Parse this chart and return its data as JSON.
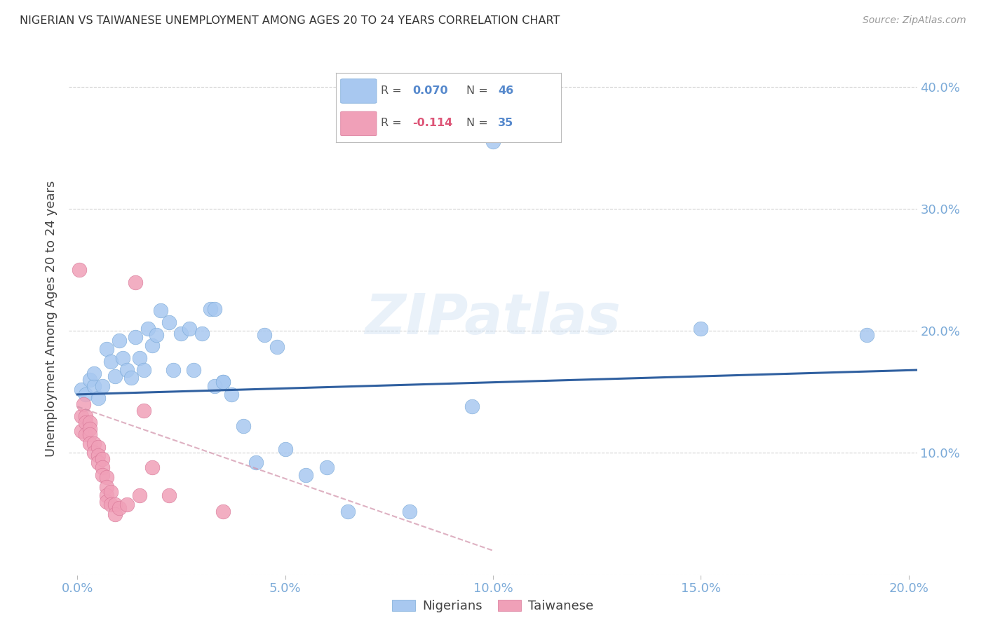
{
  "title": "NIGERIAN VS TAIWANESE UNEMPLOYMENT AMONG AGES 20 TO 24 YEARS CORRELATION CHART",
  "source": "Source: ZipAtlas.com",
  "ylabel": "Unemployment Among Ages 20 to 24 years",
  "xlim": [
    -0.002,
    0.202
  ],
  "ylim": [
    0.0,
    0.42
  ],
  "xticks": [
    0.0,
    0.05,
    0.1,
    0.15,
    0.2
  ],
  "yticks": [
    0.0,
    0.1,
    0.2,
    0.3,
    0.4
  ],
  "blue_color": "#A8C8F0",
  "blue_edge_color": "#7BAAD8",
  "pink_color": "#F0A0B8",
  "pink_edge_color": "#D87898",
  "blue_line_color": "#3060A0",
  "pink_line_color": "#D090A8",
  "grid_color": "#CCCCCC",
  "tick_color": "#7BAAD8",
  "watermark": "ZIPatlas",
  "legend_r_blue": "0.070",
  "legend_n_blue": "46",
  "legend_r_pink": "-0.114",
  "legend_n_pink": "35",
  "blue_x": [
    0.001,
    0.002,
    0.003,
    0.004,
    0.004,
    0.005,
    0.006,
    0.007,
    0.008,
    0.009,
    0.01,
    0.011,
    0.012,
    0.013,
    0.014,
    0.015,
    0.016,
    0.017,
    0.018,
    0.019,
    0.02,
    0.022,
    0.023,
    0.025,
    0.027,
    0.028,
    0.03,
    0.032,
    0.033,
    0.035,
    0.037,
    0.04,
    0.043,
    0.045,
    0.048,
    0.033,
    0.035,
    0.05,
    0.055,
    0.06,
    0.065,
    0.08,
    0.095,
    0.1,
    0.15,
    0.19
  ],
  "blue_y": [
    0.152,
    0.148,
    0.16,
    0.155,
    0.165,
    0.145,
    0.155,
    0.185,
    0.175,
    0.163,
    0.192,
    0.178,
    0.168,
    0.162,
    0.195,
    0.178,
    0.168,
    0.202,
    0.188,
    0.197,
    0.217,
    0.207,
    0.168,
    0.198,
    0.202,
    0.168,
    0.198,
    0.218,
    0.218,
    0.158,
    0.148,
    0.122,
    0.092,
    0.197,
    0.187,
    0.155,
    0.158,
    0.103,
    0.082,
    0.088,
    0.052,
    0.052,
    0.138,
    0.355,
    0.202,
    0.197
  ],
  "pink_x": [
    0.0005,
    0.001,
    0.001,
    0.0015,
    0.002,
    0.002,
    0.002,
    0.003,
    0.003,
    0.003,
    0.003,
    0.004,
    0.004,
    0.005,
    0.005,
    0.005,
    0.006,
    0.006,
    0.006,
    0.007,
    0.007,
    0.007,
    0.007,
    0.008,
    0.008,
    0.009,
    0.009,
    0.01,
    0.012,
    0.014,
    0.015,
    0.016,
    0.018,
    0.022,
    0.035
  ],
  "pink_y": [
    0.25,
    0.13,
    0.118,
    0.14,
    0.13,
    0.125,
    0.115,
    0.125,
    0.12,
    0.115,
    0.108,
    0.108,
    0.1,
    0.105,
    0.098,
    0.092,
    0.095,
    0.088,
    0.082,
    0.08,
    0.072,
    0.065,
    0.06,
    0.068,
    0.058,
    0.058,
    0.05,
    0.055,
    0.058,
    0.24,
    0.065,
    0.135,
    0.088,
    0.065,
    0.052
  ],
  "blue_line_x": [
    0.0,
    0.202
  ],
  "blue_line_y": [
    0.148,
    0.168
  ],
  "pink_line_x": [
    0.0,
    0.1
  ],
  "pink_line_y": [
    0.138,
    0.02
  ]
}
